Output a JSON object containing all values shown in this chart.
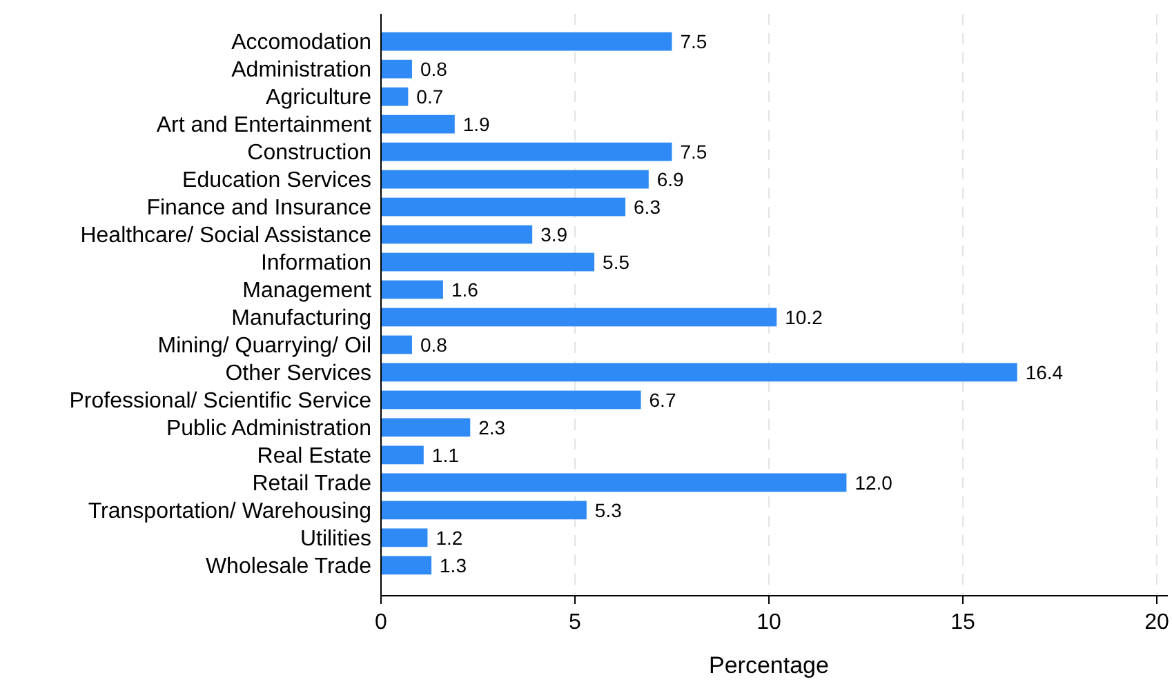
{
  "chart_data": {
    "type": "bar",
    "orientation": "horizontal",
    "xlabel": "Percentage",
    "categories": [
      "Accomodation",
      "Administration",
      "Agriculture",
      "Art and Entertainment",
      "Construction",
      "Education Services",
      "Finance and Insurance",
      "Healthcare/ Social Assistance",
      "Information",
      "Management",
      "Manufacturing",
      "Mining/ Quarrying/ Oil",
      "Other Services",
      "Professional/ Scientific Service",
      "Public Administration",
      "Real Estate",
      "Retail Trade",
      "Transportation/ Warehousing",
      "Utilities",
      "Wholesale Trade"
    ],
    "values": [
      7.5,
      0.8,
      0.7,
      1.9,
      7.5,
      6.9,
      6.3,
      3.9,
      5.5,
      1.6,
      10.2,
      0.8,
      16.4,
      6.7,
      2.3,
      1.1,
      12.0,
      5.3,
      1.2,
      1.3
    ],
    "value_labels": [
      "7.5",
      "0.8",
      "0.7",
      "1.9",
      "7.5",
      "6.9",
      "6.3",
      "3.9",
      "5.5",
      "1.6",
      "10.2",
      "0.8",
      "16.4",
      "6.7",
      "2.3",
      "1.1",
      "12.0",
      "5.3",
      "1.2",
      "1.3"
    ],
    "color": "#2f8af5",
    "xlim": [
      0,
      20
    ],
    "xticks": [
      0,
      5,
      10,
      15,
      20
    ],
    "grid": "x"
  }
}
